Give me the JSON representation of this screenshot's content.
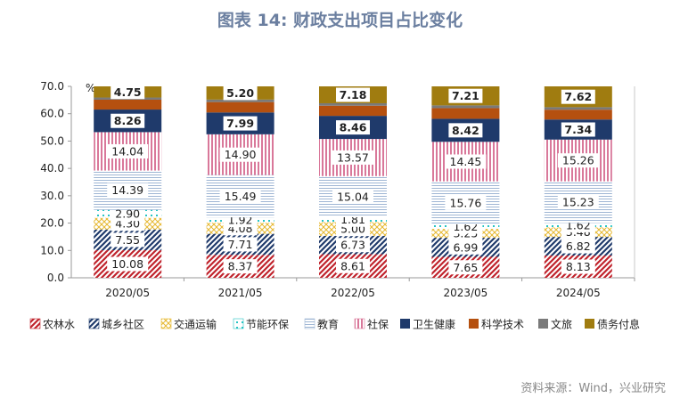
{
  "title": "图表 14: 财政支出项目占比变化",
  "source": "资料来源：Wind，兴业研究",
  "chart_data": {
    "type": "bar",
    "stacked": true,
    "categories": [
      "2020/05",
      "2021/05",
      "2022/05",
      "2023/05",
      "2024/05"
    ],
    "unit": "%",
    "ylim": [
      0,
      70
    ],
    "yticks": [
      "0.0",
      "10.0",
      "20.0",
      "30.0",
      "40.0",
      "50.0",
      "60.0",
      "70.0"
    ],
    "grid": false,
    "legend_position": "bottom",
    "series": [
      {
        "name": "农林水",
        "values": [
          10.08,
          8.37,
          8.61,
          7.65,
          8.13
        ],
        "labels": [
          "10.08",
          "8.37",
          "8.61",
          "7.65",
          "8.13"
        ],
        "color": "#c0232c",
        "pattern": "diag"
      },
      {
        "name": "城乡社区",
        "values": [
          7.55,
          7.71,
          6.73,
          6.99,
          6.82
        ],
        "labels": [
          "7.55",
          "7.71",
          "6.73",
          "6.99",
          "6.82"
        ],
        "color": "#1f3a6b",
        "pattern": "diag"
      },
      {
        "name": "交通运输",
        "values": [
          4.3,
          4.08,
          5.0,
          3.25,
          3.48
        ],
        "labels": [
          "4.30",
          "4.08",
          "5.00",
          "3.25",
          "3.48"
        ],
        "color": "#e6b830",
        "pattern": "cross"
      },
      {
        "name": "节能环保",
        "values": [
          2.9,
          1.92,
          1.81,
          1.62,
          1.62
        ],
        "labels": [
          "2.90",
          "1.92",
          "1.81",
          "1.62",
          "1.62"
        ],
        "color": "#27c4c4",
        "pattern": "dots"
      },
      {
        "name": "教育",
        "values": [
          14.39,
          15.49,
          15.04,
          15.76,
          15.23
        ],
        "labels": [
          "14.39",
          "15.49",
          "15.04",
          "15.76",
          "15.23"
        ],
        "color": "#9fb6d4",
        "pattern": "hlines"
      },
      {
        "name": "社保",
        "values": [
          14.04,
          14.9,
          13.57,
          14.45,
          15.26
        ],
        "labels": [
          "14.04",
          "14.90",
          "13.57",
          "14.45",
          "15.26"
        ],
        "color": "#d9789a",
        "pattern": "vlines"
      },
      {
        "name": "卫生健康",
        "values": [
          8.26,
          7.99,
          8.46,
          8.42,
          7.34
        ],
        "labels": [
          "8.26",
          "7.99",
          "8.46",
          "8.42",
          "7.34"
        ],
        "color": "#1f3a6b",
        "pattern": "solid"
      },
      {
        "name": "科学技术",
        "values": [
          3.6,
          3.8,
          3.7,
          3.9,
          3.6
        ],
        "labels": [
          "",
          "",
          "",
          "",
          ""
        ],
        "color": "#b5500f",
        "pattern": "solid"
      },
      {
        "name": "文旅",
        "values": [
          0.8,
          0.9,
          0.9,
          1.0,
          0.9
        ],
        "labels": [
          "",
          "",
          "",
          "",
          ""
        ],
        "color": "#7a7a7a",
        "pattern": "solid"
      },
      {
        "name": "债务付息",
        "values": [
          4.75,
          5.2,
          7.18,
          7.21,
          7.62
        ],
        "labels": [
          "4.75",
          "5.20",
          "7.18",
          "7.21",
          "7.62"
        ],
        "color": "#a07c10",
        "pattern": "solid"
      }
    ]
  }
}
